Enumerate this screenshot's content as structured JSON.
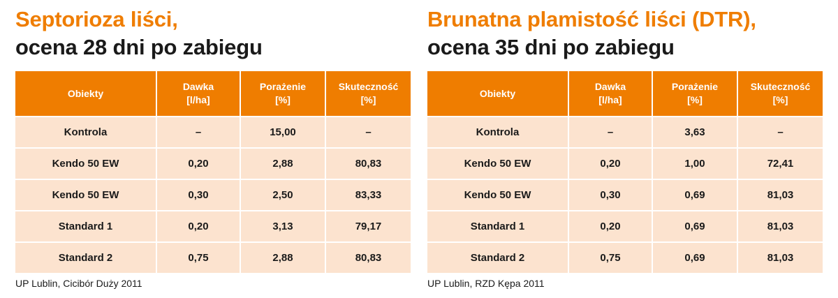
{
  "headers": [
    "Obiekty",
    "Dawka [l/ha]",
    "Porażenie [%]",
    "Skuteczność [%]"
  ],
  "headers_lines": [
    [
      "Obiekty"
    ],
    [
      "Dawka",
      "[l/ha]"
    ],
    [
      "Porażenie",
      "[%]"
    ],
    [
      "Skuteczność",
      "[%]"
    ]
  ],
  "left": {
    "title_main": "Septorioza liści,",
    "title_sub": "ocena 28 dni po zabiegu",
    "rows": [
      {
        "obiekt": "Kontrola",
        "dawka": "–",
        "porazenie": "15,00",
        "skutecznosc": "–"
      },
      {
        "obiekt": "Kendo 50 EW",
        "dawka": "0,20",
        "porazenie": "2,88",
        "skutecznosc": "80,83"
      },
      {
        "obiekt": "Kendo 50 EW",
        "dawka": "0,30",
        "porazenie": "2,50",
        "skutecznosc": "83,33"
      },
      {
        "obiekt": "Standard 1",
        "dawka": "0,20",
        "porazenie": "3,13",
        "skutecznosc": "79,17"
      },
      {
        "obiekt": "Standard 2",
        "dawka": "0,75",
        "porazenie": "2,88",
        "skutecznosc": "80,83"
      }
    ],
    "source": "UP Lublin, Cicibór Duży 2011"
  },
  "right": {
    "title_main": "Brunatna plamistość liści (DTR),",
    "title_sub": "ocena 35 dni po zabiegu",
    "rows": [
      {
        "obiekt": "Kontrola",
        "dawka": "–",
        "porazenie": "3,63",
        "skutecznosc": "–"
      },
      {
        "obiekt": "Kendo 50 EW",
        "dawka": "0,20",
        "porazenie": "1,00",
        "skutecznosc": "72,41"
      },
      {
        "obiekt": "Kendo 50 EW",
        "dawka": "0,30",
        "porazenie": "0,69",
        "skutecznosc": "81,03"
      },
      {
        "obiekt": "Standard 1",
        "dawka": "0,20",
        "porazenie": "0,69",
        "skutecznosc": "81,03"
      },
      {
        "obiekt": "Standard 2",
        "dawka": "0,75",
        "porazenie": "0,69",
        "skutecznosc": "81,03"
      }
    ],
    "source": "UP Lublin, RZD Kępa 2011"
  },
  "colors": {
    "accent": "#ef7d00",
    "row_bg": "#fce3cf",
    "text": "#1a1a1a",
    "header_text": "#ffffff"
  }
}
